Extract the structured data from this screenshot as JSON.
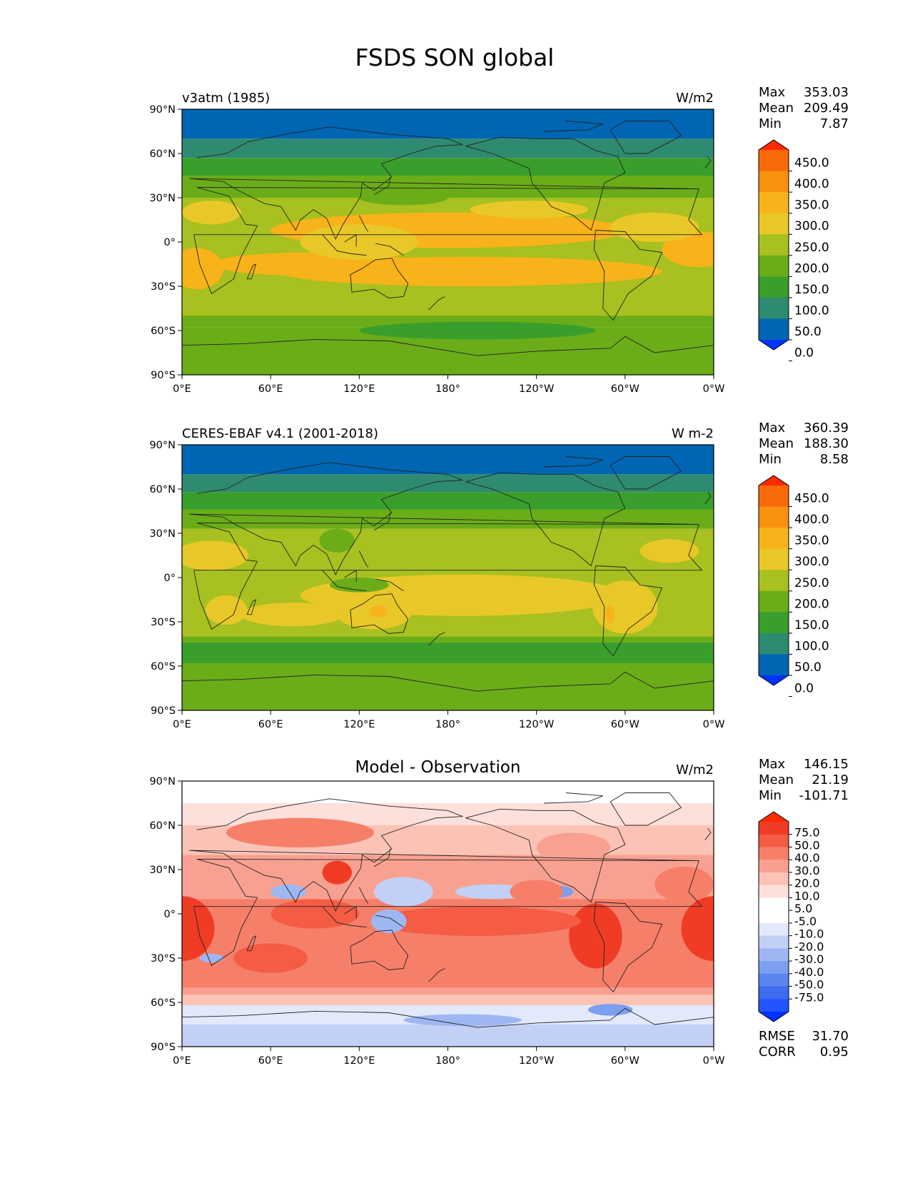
{
  "title": "FSDS SON global",
  "x_ticks": [
    "0°E",
    "60°E",
    "120°E",
    "180°",
    "120°W",
    "60°W",
    "0°W"
  ],
  "y_ticks": [
    "90°N",
    "60°N",
    "30°N",
    "0°",
    "30°S",
    "60°S",
    "90°S"
  ],
  "palettes": {
    "abs": [
      "#0033ff",
      "#0066b3",
      "#2e8a70",
      "#3a9e2c",
      "#6aad18",
      "#a8c020",
      "#e8c828",
      "#f8b21a",
      "#f89010",
      "#f86a08",
      "#ff2a00"
    ],
    "diff": [
      "#0033ff",
      "#2255ff",
      "#3d6cf0",
      "#5b85ee",
      "#7c9ff0",
      "#9eb7f2",
      "#c2d0f5",
      "#e2e9fb",
      "#ffffff",
      "#ffffff",
      "#fde0da",
      "#fbc3b6",
      "#f8a190",
      "#f67f6a",
      "#f45c44",
      "#f03c25",
      "#ff2a00"
    ]
  },
  "panels": [
    {
      "label": "v3atm (1985)",
      "units": "W/m2",
      "stats": [
        {
          "label": "Max",
          "value": "353.03"
        },
        {
          "label": "Mean",
          "value": "209.49"
        },
        {
          "label": "Min",
          "value": "7.87"
        }
      ],
      "colorbar_ticks": [
        "450.0",
        "400.0",
        "350.0",
        "300.0",
        "250.0",
        "200.0",
        "150.0",
        "100.0",
        "50.0",
        "0.0"
      ],
      "palette": "abs"
    },
    {
      "label": "CERES-EBAF v4.1 (2001-2018)",
      "units": "W m-2",
      "stats": [
        {
          "label": "Max",
          "value": "360.39"
        },
        {
          "label": "Mean",
          "value": "188.30"
        },
        {
          "label": "Min",
          "value": "8.58"
        }
      ],
      "colorbar_ticks": [
        "450.0",
        "400.0",
        "350.0",
        "300.0",
        "250.0",
        "200.0",
        "150.0",
        "100.0",
        "50.0",
        "0.0"
      ],
      "palette": "abs"
    },
    {
      "title": "Model - Observation",
      "units": "W/m2",
      "stats": [
        {
          "label": "Max",
          "value": "146.15"
        },
        {
          "label": "Mean",
          "value": "21.19"
        },
        {
          "label": "Min",
          "value": "-101.71"
        }
      ],
      "colorbar_ticks": [
        "75.0",
        "50.0",
        "40.0",
        "30.0",
        "20.0",
        "10.0",
        "5.0",
        "-5.0",
        "-10.0",
        "-20.0",
        "-30.0",
        "-40.0",
        "-50.0",
        "-75.0"
      ],
      "palette": "diff",
      "extra_stats": [
        {
          "label": "RMSE",
          "value": "31.70"
        },
        {
          "label": "CORR",
          "value": "0.95"
        }
      ]
    }
  ]
}
